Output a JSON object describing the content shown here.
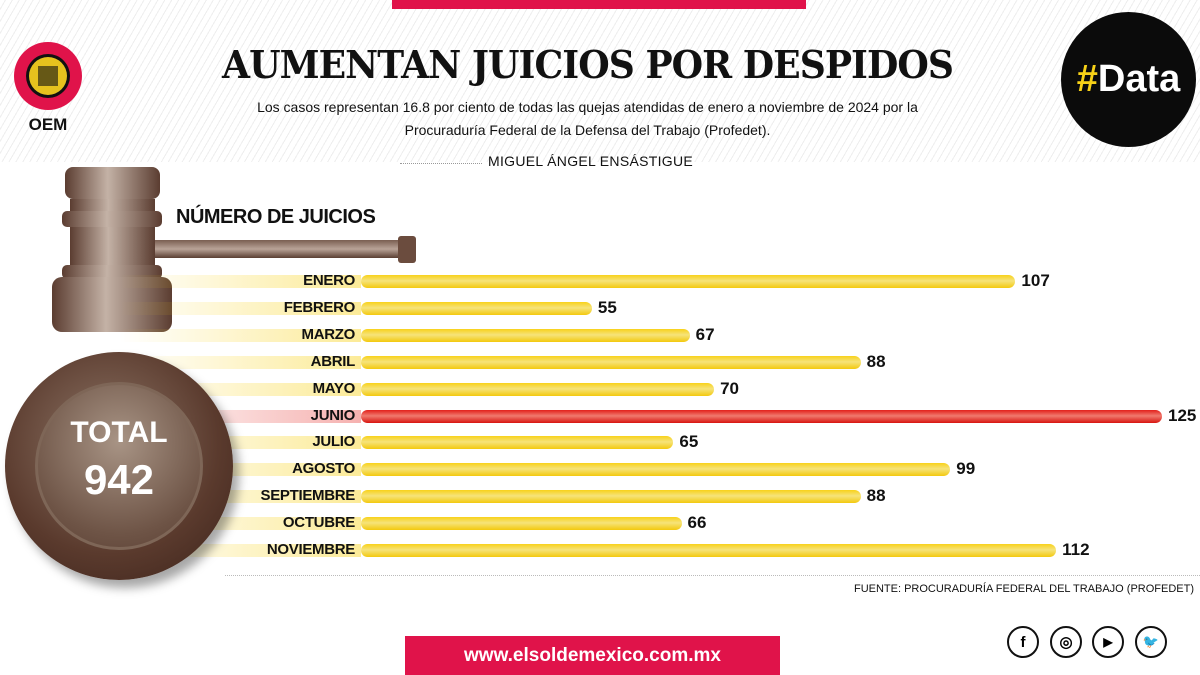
{
  "header": {
    "title": "AUMENTAN JUICIOS POR DESPIDOS",
    "subtitle_line1": "Los casos representan 16.8 por ciento de todas las quejas atendidas de enero a noviembre de 2024 por la",
    "subtitle_line2": "Procuraduría Federal de la Defensa del Trabajo (Profedet).",
    "author": "MIGUEL ÁNGEL ENSÁSTIGUE",
    "logo_text": "OEM",
    "badge": {
      "hash": "#",
      "word": "Data"
    }
  },
  "total": {
    "label": "TOTAL",
    "value": "942"
  },
  "colors": {
    "accent": "#e0134a",
    "bar": "#f8d21a",
    "highlight": "#e3201b",
    "gavel": "#6b4c3e"
  },
  "chart_data": {
    "type": "bar",
    "orientation": "horizontal",
    "title": "NÚMERO DE JUICIOS",
    "categories": [
      "ENERO",
      "FEBRERO",
      "MARZO",
      "ABRIL",
      "MAYO",
      "JUNIO",
      "JULIO",
      "AGOSTO",
      "SEPTIEMBRE",
      "OCTUBRE",
      "NOVIEMBRE"
    ],
    "values": [
      107,
      55,
      67,
      88,
      70,
      125,
      65,
      99,
      88,
      66,
      112
    ],
    "highlight": "JUNIO",
    "grid": false
  },
  "footer": {
    "source": "FUENTE: PROCURADURÍA FEDERAL DEL TRABAJO (PROFEDET)",
    "url": "www.elsoldemexico.com.mx",
    "social": [
      {
        "icon": "facebook-icon",
        "glyph": "f"
      },
      {
        "icon": "instagram-icon",
        "glyph": "◎"
      },
      {
        "icon": "youtube-icon",
        "glyph": "▶"
      },
      {
        "icon": "twitter-icon",
        "glyph": "🐦"
      }
    ]
  }
}
